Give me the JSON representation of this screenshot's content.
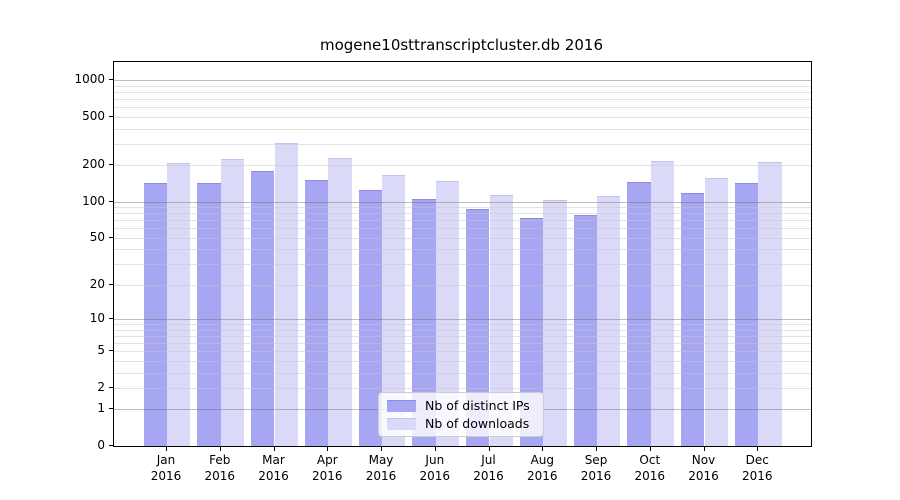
{
  "title": "mogene10sttranscriptcluster.db 2016",
  "chart_data": {
    "type": "bar",
    "title": "mogene10sttranscriptcluster.db 2016",
    "categories": [
      "Jan 2016",
      "Feb 2016",
      "Mar 2016",
      "Apr 2016",
      "May 2016",
      "Jun 2016",
      "Jul 2016",
      "Aug 2016",
      "Sep 2016",
      "Oct 2016",
      "Nov 2016",
      "Dec 2016"
    ],
    "x_tick_line1": [
      "Jan",
      "Feb",
      "Mar",
      "Apr",
      "May",
      "Jun",
      "Jul",
      "Aug",
      "Sep",
      "Oct",
      "Nov",
      "Dec"
    ],
    "x_tick_line2": [
      "2016",
      "2016",
      "2016",
      "2016",
      "2016",
      "2016",
      "2016",
      "2016",
      "2016",
      "2016",
      "2016",
      "2016"
    ],
    "series": [
      {
        "name": "Nb of distinct IPs",
        "color": "#a6a6f2",
        "edge_color": "#8d8de0",
        "values": [
          143,
          141,
          180,
          150,
          125,
          104,
          86,
          73,
          78,
          146,
          117,
          143
        ]
      },
      {
        "name": "Nb of downloads",
        "color": "#dadaf8",
        "edge_color": "#c3c3ef",
        "values": [
          207,
          226,
          305,
          227,
          165,
          148,
          113,
          102,
          111,
          217,
          156,
          214
        ]
      }
    ],
    "xlabel": "",
    "ylabel": "",
    "y_axis": {
      "scale": "log1p",
      "tick_values": [
        0,
        1,
        2,
        5,
        10,
        20,
        50,
        100,
        200,
        500,
        1000
      ],
      "tick_labels": [
        "0",
        "1",
        "2",
        "5",
        "10",
        "20",
        "50",
        "100",
        "200",
        "500",
        "1000"
      ],
      "top_value": 1406,
      "major_grid_at": [
        1,
        10,
        100,
        1000
      ]
    },
    "grid": "on",
    "legend_position": "lower center"
  },
  "colors": {
    "background": "#ffffff",
    "spine": "#000000",
    "grid_major": "#b3b3b3",
    "grid_minor": "#e3e3e3",
    "text": "#000000",
    "bar_dark": "#a6a6f2",
    "bar_light": "#dadaf8"
  }
}
